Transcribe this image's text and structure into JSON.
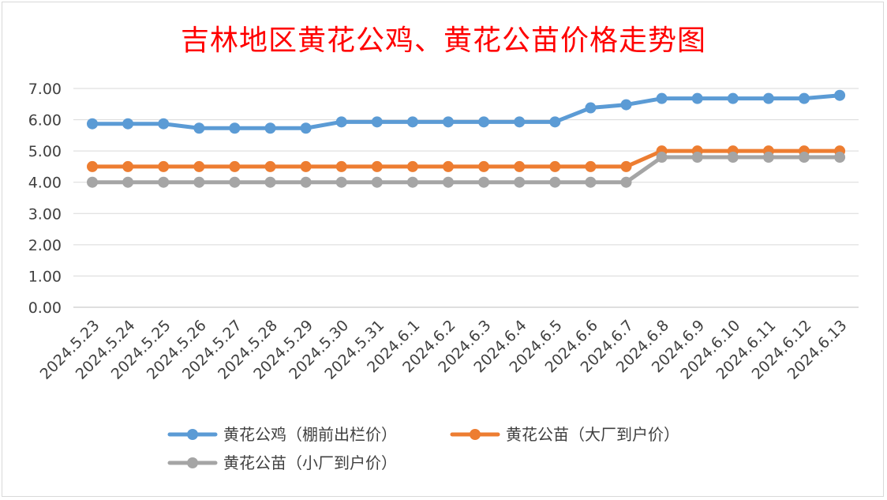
{
  "chart_data": {
    "type": "line",
    "title": "吉林地区黄花公鸡、黄花公苗价格走势图",
    "xlabel": "",
    "ylabel": "",
    "ylim": [
      0,
      7
    ],
    "yticks": [
      "0.00",
      "1.00",
      "2.00",
      "3.00",
      "4.00",
      "5.00",
      "6.00",
      "7.00"
    ],
    "grid": true,
    "legend_position": "bottom",
    "categories": [
      "2024.5.23",
      "2024.5.24",
      "2024.5.25",
      "2024.5.26",
      "2024.5.27",
      "2024.5.28",
      "2024.5.29",
      "2024.5.30",
      "2024.5.31",
      "2024.6.1",
      "2024.6.2",
      "2024.6.3",
      "2024.6.4",
      "2024.6.5",
      "2024.6.6",
      "2024.6.7",
      "2024.6.8",
      "2024.6.9",
      "2024.6.10",
      "2024.6.11",
      "2024.6.12",
      "2024.6.13"
    ],
    "series": [
      {
        "name": "黄花公鸡（棚前出栏价）",
        "color": "#5b9bd5",
        "values": [
          5.87,
          5.87,
          5.87,
          5.73,
          5.73,
          5.73,
          5.73,
          5.93,
          5.93,
          5.93,
          5.93,
          5.93,
          5.93,
          5.93,
          6.38,
          6.48,
          6.68,
          6.68,
          6.68,
          6.68,
          6.68,
          6.78
        ]
      },
      {
        "name": "黄花公苗（大厂到户价）",
        "color": "#ed7d31",
        "values": [
          4.5,
          4.5,
          4.5,
          4.5,
          4.5,
          4.5,
          4.5,
          4.5,
          4.5,
          4.5,
          4.5,
          4.5,
          4.5,
          4.5,
          4.5,
          4.5,
          5.0,
          5.0,
          5.0,
          5.0,
          5.0,
          5.0
        ]
      },
      {
        "name": "黄花公苗（小厂到户价）",
        "color": "#a5a5a5",
        "values": [
          4.0,
          4.0,
          4.0,
          4.0,
          4.0,
          4.0,
          4.0,
          4.0,
          4.0,
          4.0,
          4.0,
          4.0,
          4.0,
          4.0,
          4.0,
          4.0,
          4.8,
          4.8,
          4.8,
          4.8,
          4.8,
          4.8
        ]
      }
    ]
  }
}
